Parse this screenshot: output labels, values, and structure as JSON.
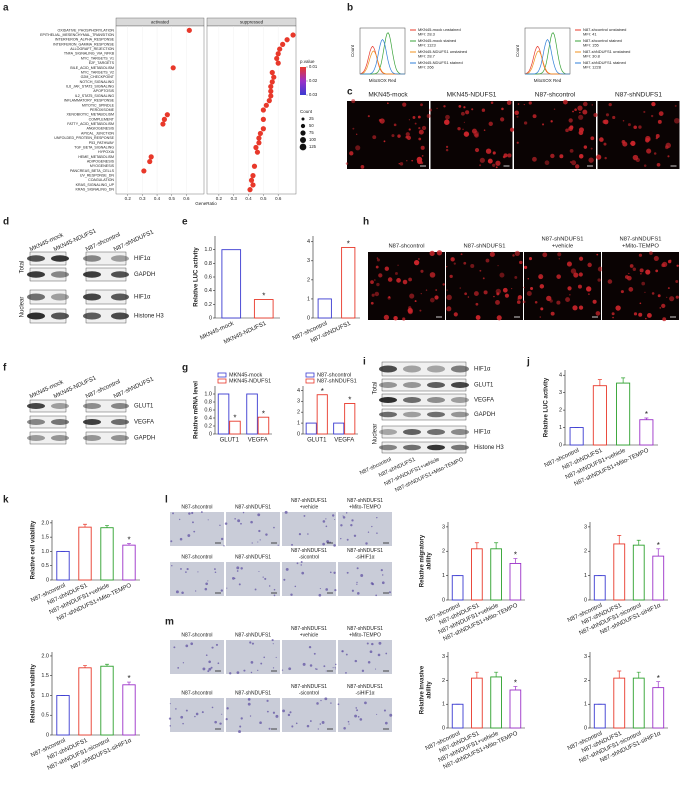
{
  "a": {
    "letter": "a",
    "headers": [
      "activated",
      "suppressed"
    ],
    "pathways": [
      "OXIDATIVE_PHOSPHORYLATION",
      "EPITHELIAL_MESENCHYMAL_TRANSITION",
      "INTERFERON_ALPHA_RESPONSE",
      "INTERFERON_GAMMA_RESPONSE",
      "ALLOGRAFT_REJECTION",
      "TNFA_SIGNALING_VIA_NFKB",
      "MYC_TARGETS_V1",
      "E2F_TARGETS",
      "BILE_ACID_METABOLISM",
      "MYC_TARGETS_V2",
      "G2M_CHECKPOINT",
      "NOTCH_SIGNALING",
      "IL6_JAK_STAT3_SIGNALING",
      "APOPTOSIS",
      "IL2_STAT5_SIGNALING",
      "INFLAMMATORY_RESPONSE",
      "MITOTIC_SPINDLE",
      "PEROXISOME",
      "XENOBIOTIC_METABOLISM",
      "COMPLEMENT",
      "FATTY_ACID_METABOLISM",
      "ANGIOGENESIS",
      "APICAL_JUNCTION",
      "UNFOLDED_PROTEIN_RESPONSE",
      "P53_PATHWAY",
      "TGF_BETA_SIGNALING",
      "HYPOXIA",
      "HEME_METABOLISM",
      "ADIPOGENESIS",
      "MYOGENESIS",
      "PANCREAS_BETA_CELLS",
      "UV_RESPONSE_DN",
      "COAGULATION",
      "KRAS_SIGNALING_UP",
      "KRAS_SIGNALING_DN"
    ],
    "activated": [
      0.62,
      null,
      null,
      null,
      null,
      null,
      null,
      null,
      0.51,
      null,
      null,
      null,
      null,
      null,
      null,
      null,
      null,
      null,
      0.47,
      0.45,
      0.44,
      null,
      null,
      null,
      null,
      null,
      null,
      0.36,
      0.35,
      null,
      0.31,
      null,
      null,
      null,
      null
    ],
    "suppressed": [
      null,
      0.7,
      0.66,
      0.63,
      0.61,
      0.6,
      0.59,
      0.6,
      null,
      0.56,
      0.57,
      0.56,
      0.55,
      0.55,
      0.55,
      0.54,
      0.52,
      0.5,
      null,
      0.5,
      null,
      0.5,
      0.48,
      0.47,
      0.47,
      0.45,
      0.46,
      null,
      null,
      0.44,
      null,
      0.43,
      0.42,
      0.43,
      0.41
    ],
    "xlim": [
      0.12,
      0.72
    ],
    "xticks": [
      0.2,
      0.3,
      0.4,
      0.5,
      0.6
    ],
    "xlabel": "GeneRatio",
    "color_title": "p.value",
    "color_ticks": [
      0.01,
      0.02,
      0.03
    ],
    "size_title": "Count",
    "size_ticks": [
      25,
      50,
      75,
      100,
      125
    ]
  },
  "b": {
    "letter": "b",
    "ylabel": "Count",
    "xlabel": "MitoSOX Red",
    "plots": [
      [
        {
          "label": "MKN45-mock unstained",
          "mfi": "MFI: 28.3",
          "color": "#e8382a"
        },
        {
          "label": "MKN45-mock stained",
          "mfi": "MFI: 1123",
          "color": "#3aa33a"
        },
        {
          "label": "MKN45-NDUFS1 unstained",
          "mfi": "MFI: 28.7",
          "color": "#f0921e"
        },
        {
          "label": "MKN45-NDUFS1 stained",
          "mfi": "MFI: 266",
          "color": "#2f7fd8"
        }
      ],
      [
        {
          "label": "N87-shcontrol unstained",
          "mfi": "MFI: 41",
          "color": "#e8382a"
        },
        {
          "label": "N87-shcontrol stained",
          "mfi": "MFI: 155",
          "color": "#3aa33a"
        },
        {
          "label": "N87-shNDUFS1 unstained",
          "mfi": "MFI: 30.8",
          "color": "#f0921e"
        },
        {
          "label": "N87-shNDUFS1 stained",
          "mfi": "MFI: 1228",
          "color": "#2f7fd8"
        }
      ]
    ]
  },
  "c": {
    "letter": "c",
    "labels": [
      "MKN45-mock",
      "MKN45-NDUFS1",
      "N87-shcontrol",
      "N87-shNDUFS1"
    ]
  },
  "d": {
    "letter": "d",
    "lanes": [
      "MKN45-mock",
      "MKN45-NDUFS1",
      "N87-shcontrol",
      "N87-shNDUFS1"
    ],
    "groups": [
      "Total",
      "Nuclear"
    ],
    "proteins": [
      "HIF1α",
      "GAPDH",
      "HIF1α",
      "Histone H3"
    ]
  },
  "e": {
    "letter": "e",
    "charts": [
      {
        "ylabel": "Relative LUC activity",
        "categories": [
          "MKN45-mock",
          "MKN45-NDUFS1"
        ],
        "ylim": [
          0,
          1.2
        ],
        "yticks": [
          0,
          0.2,
          0.4,
          0.6,
          0.8,
          {
            "value": 1,
            "label": "1.0"
          }
        ],
        "series": [
          {
            "colors": [
              "#3a3ad1",
              "#e8382a"
            ],
            "values": [
              1,
              0.27
            ],
            "annotations": [
              null,
              "*"
            ]
          }
        ]
      },
      {
        "categories": [
          "N87-shcontrol",
          "N87-shNDUFS1"
        ],
        "ylim": [
          0,
          4.3
        ],
        "yticks": [
          0,
          1,
          2,
          3,
          4
        ],
        "series": [
          {
            "colors": [
              "#3a3ad1",
              "#e8382a"
            ],
            "values": [
              1,
              3.7
            ],
            "annotations": [
              null,
              "*"
            ]
          }
        ]
      }
    ]
  },
  "f": {
    "letter": "f",
    "lanes": [
      "MKN45-mock",
      "MKN45-NDUFS1",
      "N87-shcontrol",
      "N87-shNDUFS1"
    ],
    "proteins": [
      "GLUT1",
      "VEGFA",
      "GAPDH"
    ]
  },
  "g": {
    "letter": "g",
    "charts": [
      {
        "ylabel": "Relative mRNA level",
        "categories": [
          "GLUT1",
          "VEGFA"
        ],
        "ylim": [
          0,
          1.2
        ],
        "yticks": [
          0,
          0.2,
          0.4,
          0.6,
          0.8,
          {
            "value": 1,
            "label": "1.0"
          }
        ],
        "series": [
          {
            "name": "MKN45-mock",
            "color": "#3a3ad1",
            "values": [
              1,
              1
            ],
            "annotations": [
              null,
              null
            ]
          },
          {
            "name": "MKN45-NDUFS1",
            "color": "#e8382a",
            "values": [
              0.32,
              0.42
            ],
            "annotations": [
              "*",
              "*"
            ]
          }
        ]
      },
      {
        "categories": [
          "GLUT1",
          "VEGFA"
        ],
        "ylim": [
          0,
          4.4
        ],
        "yticks": [
          0,
          1,
          2,
          3,
          4
        ],
        "series": [
          {
            "name": "N87-shcontrol",
            "color": "#3a3ad1",
            "values": [
              1,
              1
            ],
            "annotations": [
              null,
              null
            ]
          },
          {
            "name": "N87-shNDUFS1",
            "color": "#e8382a",
            "values": [
              3.6,
              2.8
            ],
            "annotations": [
              "*",
              "*"
            ]
          }
        ]
      }
    ]
  },
  "h": {
    "letter": "h",
    "labels": [
      [
        "N87-shcontrol"
      ],
      [
        "N87-shNDUFS1"
      ],
      [
        "N87-shNDUFS1",
        "+vehicle"
      ],
      [
        "N87-shNDUFS1",
        "+Mito-TEMPO"
      ]
    ]
  },
  "i": {
    "letter": "i",
    "lanes": [
      "N87-shcontrol",
      "N87-shNDUFS1",
      "N87-shNDUFS1+vehicle",
      "N87-shNDUFS1+Mito-TEMPO"
    ],
    "groups": [
      "Total",
      "Nuclear"
    ],
    "proteins": [
      "HIF1α",
      "GLUT1",
      "VEGFA",
      "GAPDH",
      "HIF1α",
      "Histone H3"
    ]
  },
  "j": {
    "letter": "j",
    "charts": [
      {
        "ylabel": "Relative LUC activity",
        "categories": [
          "N87-shcontrol",
          "N87-shNDUFS1",
          "N87-shNDUFS1+vehicle",
          "N87-shNDUFS1+Mito-TEMPO"
        ],
        "ylim": [
          0,
          4.3
        ],
        "yticks": [
          0,
          1,
          2,
          3,
          4
        ],
        "series": [
          {
            "colors": [
              "#3a3ad1",
              "#e8382a",
              "#2ca02c",
              "#9b30c8"
            ],
            "values": [
              1,
              3.4,
              3.55,
              1.45
            ],
            "errors": [
              0,
              0.35,
              0.3,
              0.1
            ],
            "annotations": [
              null,
              null,
              null,
              "*"
            ]
          }
        ]
      }
    ]
  },
  "k": {
    "letter": "k",
    "charts": [
      {
        "ylabel": "Relative cell viability",
        "categories": [
          "N87-shcontrol",
          "N87-shNDUFS1",
          "N87-shNDUFS1+vehicle",
          "N87-shNDUFS1+Mito-TEMPO"
        ],
        "ylim": [
          0,
          2.1
        ],
        "yticks": [
          0,
          0.5,
          {
            "value": 1,
            "label": "1.0"
          },
          1.5,
          {
            "value": 2,
            "label": "2.0"
          }
        ],
        "series": [
          {
            "colors": [
              "#3a3ad1",
              "#e8382a",
              "#2ca02c",
              "#9b30c8"
            ],
            "values": [
              1,
              1.85,
              1.83,
              1.22
            ],
            "errors": [
              0,
              0.1,
              0.08,
              0.06
            ],
            "annotations": [
              null,
              null,
              null,
              "*"
            ]
          }
        ]
      },
      {
        "ylabel": "Relative cell viability",
        "categories": [
          "N87-shcontrol",
          "N87-shNDUFS1",
          "N87-shNDUFS1-sicontrol",
          "N87-shNDUFS1-siHIF1α"
        ],
        "ylim": [
          0,
          2.1
        ],
        "yticks": [
          0,
          0.5,
          {
            "value": 1,
            "label": "1.0"
          },
          1.5,
          {
            "value": 2,
            "label": "2.0"
          }
        ],
        "series": [
          {
            "colors": [
              "#3a3ad1",
              "#e8382a",
              "#2ca02c",
              "#9b30c8"
            ],
            "values": [
              1,
              1.7,
              1.74,
              1.27
            ],
            "errors": [
              0,
              0.06,
              0.05,
              0.07
            ],
            "annotations": [
              null,
              null,
              null,
              "*"
            ]
          }
        ]
      }
    ]
  },
  "l": {
    "letter": "l",
    "rows": [
      [
        "N87-shcontrol"
      ],
      [
        "N87-shNDUFS1"
      ],
      [
        "N87-shNDUFS1",
        "+vehicle"
      ],
      [
        "N87-shNDUFS1",
        "+Mito-TEMPO"
      ],
      [
        "N87-shcontrol"
      ],
      [
        "N87-shNDUFS1"
      ],
      [
        "N87-shNDUFS1",
        "-sicontrol"
      ],
      [
        "N87-shNDUFS1",
        "-siHIF1α"
      ]
    ],
    "charts": [
      {
        "ylabel": [
          "Relative migratory",
          "ability"
        ],
        "categories": [
          "N87-shcontrol",
          "N87-shNDUFS1",
          "N87-shNDUFS1+vehicle",
          "N87-shNDUFS1+Mito-TEMPO"
        ],
        "ylim": [
          0,
          3.2
        ],
        "yticks": [
          0,
          1,
          2,
          3
        ],
        "series": [
          {
            "colors": [
              "#3a3ad1",
              "#e8382a",
              "#2ca02c",
              "#9b30c8"
            ],
            "values": [
              1,
              2.1,
              2.1,
              1.5
            ],
            "errors": [
              0,
              0.25,
              0.25,
              0.2
            ],
            "annotations": [
              null,
              null,
              null,
              "*"
            ]
          }
        ]
      },
      {
        "categories": [
          "N87-shcontrol",
          "N87-shNDUFS1",
          "N87-shNDUFS1-sicontrol",
          "N87-shNDUFS1-siHIF1α"
        ],
        "ylim": [
          0,
          3.2
        ],
        "yticks": [
          0,
          1,
          2,
          3
        ],
        "series": [
          {
            "colors": [
              "#3a3ad1",
              "#e8382a",
              "#2ca02c",
              "#9b30c8"
            ],
            "values": [
              1,
              2.3,
              2.25,
              1.8
            ],
            "errors": [
              0,
              0.35,
              0.2,
              0.3
            ],
            "annotations": [
              null,
              null,
              null,
              "*"
            ]
          }
        ]
      }
    ]
  },
  "m": {
    "letter": "m",
    "rows": [
      [
        "N87-shcontrol"
      ],
      [
        "N87-shNDUFS1"
      ],
      [
        "N87-shNDUFS1",
        "+vehicle"
      ],
      [
        "N87-shNDUFS1",
        "+Mito-TEMPO"
      ],
      [
        "N87-shcontrol"
      ],
      [
        "N87-shNDUFS1"
      ],
      [
        "N87-shNDUFS1",
        "-sicontrol"
      ],
      [
        "N87-shNDUFS1",
        "-siHIF1α"
      ]
    ],
    "charts": [
      {
        "ylabel": [
          "Relative invasive",
          "ability"
        ],
        "categories": [
          "N87-shcontrol",
          "N87-shNDUFS1",
          "N87-shNDUFS1+vehicle",
          "N87-shNDUFS1+Mito-TEMPO"
        ],
        "ylim": [
          0,
          3.2
        ],
        "yticks": [
          0,
          1,
          2,
          3
        ],
        "series": [
          {
            "colors": [
              "#3a3ad1",
              "#e8382a",
              "#2ca02c",
              "#9b30c8"
            ],
            "values": [
              1,
              2.1,
              2.15,
              1.6
            ],
            "errors": [
              0,
              0.25,
              0.2,
              0.15
            ],
            "annotations": [
              null,
              null,
              null,
              "*"
            ]
          }
        ]
      },
      {
        "categories": [
          "N87-shcontrol",
          "N87-shNDUFS1",
          "N87-shNDUFS1-sicontrol",
          "N87-shNDUFS1-siHIF1α"
        ],
        "ylim": [
          0,
          3.2
        ],
        "yticks": [
          0,
          1,
          2,
          3
        ],
        "series": [
          {
            "colors": [
              "#3a3ad1",
              "#e8382a",
              "#2ca02c",
              "#9b30c8"
            ],
            "values": [
              1,
              2.1,
              2.1,
              1.7
            ],
            "errors": [
              0,
              0.3,
              0.25,
              0.25
            ],
            "annotations": [
              null,
              null,
              null,
              "*"
            ]
          }
        ]
      }
    ]
  }
}
